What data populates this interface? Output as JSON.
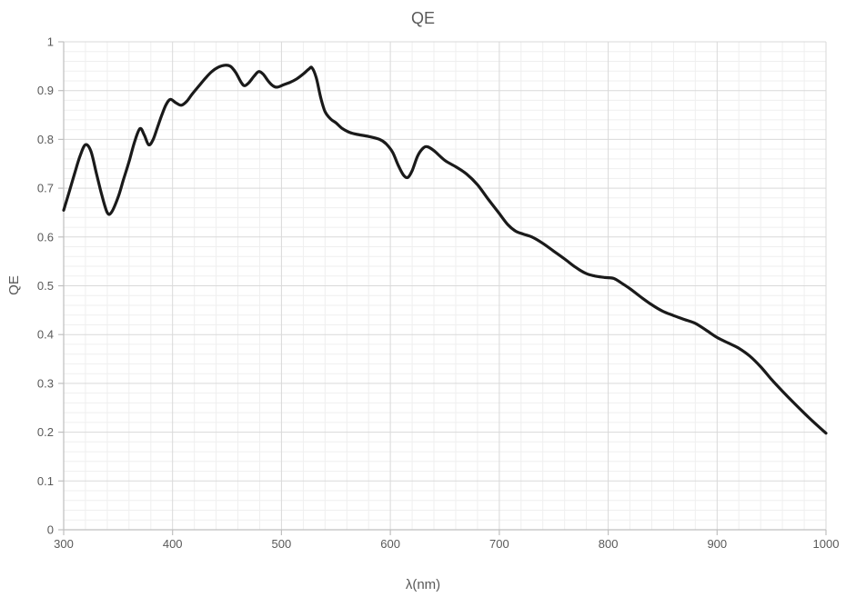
{
  "chart_data": {
    "type": "line",
    "title": "QE",
    "xlabel": "λ(nm)",
    "ylabel": "QE",
    "xlim": [
      300,
      1000
    ],
    "ylim": [
      0,
      1
    ],
    "x_major_ticks": [
      300,
      400,
      500,
      600,
      700,
      800,
      900,
      1000
    ],
    "y_major_ticks": [
      0,
      0.1,
      0.2,
      0.3,
      0.4,
      0.5,
      0.6,
      0.7,
      0.8,
      0.9,
      1
    ],
    "x_minor_step": 20,
    "y_minor_step": 0.02,
    "grid": "major+minor",
    "legend_position": "none",
    "series": [
      {
        "name": "QE",
        "color": "#1a1a1a",
        "line_width": 3.2,
        "points": [
          [
            300,
            0.655
          ],
          [
            305,
            0.692
          ],
          [
            310,
            0.73
          ],
          [
            315,
            0.766
          ],
          [
            320,
            0.789
          ],
          [
            325,
            0.776
          ],
          [
            330,
            0.731
          ],
          [
            335,
            0.686
          ],
          [
            340,
            0.65
          ],
          [
            344,
            0.651
          ],
          [
            350,
            0.682
          ],
          [
            355,
            0.718
          ],
          [
            360,
            0.754
          ],
          [
            365,
            0.794
          ],
          [
            370,
            0.822
          ],
          [
            374,
            0.809
          ],
          [
            378,
            0.789
          ],
          [
            382,
            0.799
          ],
          [
            386,
            0.824
          ],
          [
            390,
            0.849
          ],
          [
            394,
            0.871
          ],
          [
            398,
            0.882
          ],
          [
            403,
            0.875
          ],
          [
            408,
            0.87
          ],
          [
            413,
            0.878
          ],
          [
            418,
            0.893
          ],
          [
            424,
            0.909
          ],
          [
            430,
            0.925
          ],
          [
            436,
            0.939
          ],
          [
            442,
            0.948
          ],
          [
            448,
            0.952
          ],
          [
            453,
            0.95
          ],
          [
            458,
            0.937
          ],
          [
            463,
            0.917
          ],
          [
            466,
            0.91
          ],
          [
            470,
            0.916
          ],
          [
            475,
            0.93
          ],
          [
            479,
            0.939
          ],
          [
            483,
            0.934
          ],
          [
            488,
            0.919
          ],
          [
            492,
            0.91
          ],
          [
            496,
            0.907
          ],
          [
            502,
            0.912
          ],
          [
            508,
            0.917
          ],
          [
            514,
            0.924
          ],
          [
            520,
            0.934
          ],
          [
            525,
            0.944
          ],
          [
            528,
            0.947
          ],
          [
            532,
            0.926
          ],
          [
            536,
            0.886
          ],
          [
            540,
            0.857
          ],
          [
            545,
            0.842
          ],
          [
            550,
            0.834
          ],
          [
            556,
            0.822
          ],
          [
            563,
            0.814
          ],
          [
            570,
            0.81
          ],
          [
            580,
            0.806
          ],
          [
            590,
            0.8
          ],
          [
            596,
            0.791
          ],
          [
            602,
            0.774
          ],
          [
            607,
            0.748
          ],
          [
            612,
            0.727
          ],
          [
            616,
            0.722
          ],
          [
            620,
            0.736
          ],
          [
            625,
            0.766
          ],
          [
            630,
            0.782
          ],
          [
            634,
            0.785
          ],
          [
            640,
            0.777
          ],
          [
            650,
            0.757
          ],
          [
            660,
            0.744
          ],
          [
            670,
            0.729
          ],
          [
            680,
            0.707
          ],
          [
            690,
            0.677
          ],
          [
            700,
            0.648
          ],
          [
            708,
            0.625
          ],
          [
            715,
            0.612
          ],
          [
            722,
            0.606
          ],
          [
            730,
            0.6
          ],
          [
            740,
            0.587
          ],
          [
            750,
            0.571
          ],
          [
            760,
            0.555
          ],
          [
            770,
            0.538
          ],
          [
            780,
            0.525
          ],
          [
            788,
            0.52
          ],
          [
            797,
            0.517
          ],
          [
            805,
            0.515
          ],
          [
            812,
            0.506
          ],
          [
            820,
            0.494
          ],
          [
            830,
            0.477
          ],
          [
            840,
            0.461
          ],
          [
            850,
            0.448
          ],
          [
            860,
            0.439
          ],
          [
            870,
            0.431
          ],
          [
            880,
            0.423
          ],
          [
            890,
            0.409
          ],
          [
            900,
            0.394
          ],
          [
            910,
            0.383
          ],
          [
            920,
            0.372
          ],
          [
            930,
            0.356
          ],
          [
            940,
            0.334
          ],
          [
            950,
            0.308
          ],
          [
            960,
            0.284
          ],
          [
            970,
            0.261
          ],
          [
            980,
            0.239
          ],
          [
            990,
            0.218
          ],
          [
            1000,
            0.198
          ]
        ]
      }
    ]
  },
  "colors": {
    "background": "#ffffff",
    "curve": "#1a1a1a",
    "major_grid": "#d9d9d9",
    "minor_grid": "#efefef",
    "axis_line": "#bfbfbf",
    "text": "#595959"
  }
}
